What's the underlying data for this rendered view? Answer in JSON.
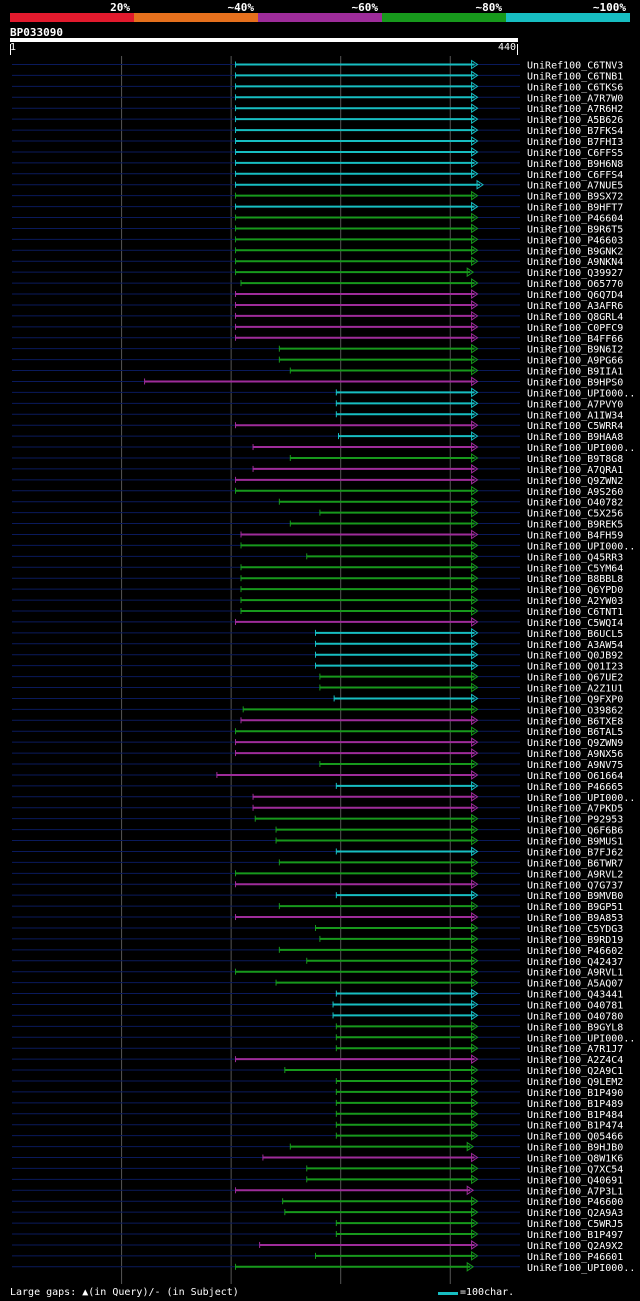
{
  "legend": [
    {
      "label": "20%",
      "color": "#e21a2d"
    },
    {
      "label": "~40%",
      "color": "#e5701d"
    },
    {
      "label": "~60%",
      "color": "#9e2c9a"
    },
    {
      "label": "~80%",
      "color": "#17991c"
    },
    {
      "label": "~100%",
      "color": "#17bec2"
    }
  ],
  "query": {
    "id": "BP033090",
    "start": "1",
    "end": "440",
    "length": 440
  },
  "footer": {
    "gaps_text": "Large gaps: ▲(in Query)/- (in Subject)",
    "scale_text": "=100char."
  },
  "colors": {
    "cyan": "#17bec2",
    "green": "#17991c",
    "magenta": "#9e2c9a",
    "track": "#0a1a5c",
    "grid": "#555555"
  },
  "chart_data": {
    "type": "alignment",
    "title": "BP033090",
    "x_range": [
      1,
      440
    ],
    "hits": [
      {
        "name": "UniRef100_C6TNV3",
        "start": 205,
        "end": 425,
        "color": "cyan"
      },
      {
        "name": "UniRef100_C6TNB1",
        "start": 205,
        "end": 425,
        "color": "cyan"
      },
      {
        "name": "UniRef100_C6TKS6",
        "start": 205,
        "end": 425,
        "color": "cyan"
      },
      {
        "name": "UniRef100_A7R7W0",
        "start": 205,
        "end": 425,
        "color": "cyan"
      },
      {
        "name": "UniRef100_A7R6H2",
        "start": 205,
        "end": 425,
        "color": "cyan"
      },
      {
        "name": "UniRef100_A5B626",
        "start": 205,
        "end": 425,
        "color": "cyan"
      },
      {
        "name": "UniRef100_B7FKS4",
        "start": 205,
        "end": 425,
        "color": "cyan"
      },
      {
        "name": "UniRef100_B7FHI3",
        "start": 205,
        "end": 425,
        "color": "cyan"
      },
      {
        "name": "UniRef100_C6FFS5",
        "start": 205,
        "end": 425,
        "color": "cyan"
      },
      {
        "name": "UniRef100_B9H6N8",
        "start": 205,
        "end": 425,
        "color": "cyan"
      },
      {
        "name": "UniRef100_C6FFS4",
        "start": 205,
        "end": 425,
        "color": "cyan"
      },
      {
        "name": "UniRef100_A7NUE5",
        "start": 205,
        "end": 430,
        "color": "cyan"
      },
      {
        "name": "UniRef100_B9SX72",
        "start": 205,
        "end": 425,
        "color": "green"
      },
      {
        "name": "UniRef100_B9HFT7",
        "start": 205,
        "end": 425,
        "color": "cyan"
      },
      {
        "name": "UniRef100_P46604",
        "start": 205,
        "end": 425,
        "color": "green"
      },
      {
        "name": "UniRef100_B9R6T5",
        "start": 205,
        "end": 425,
        "color": "green"
      },
      {
        "name": "UniRef100_P46603",
        "start": 205,
        "end": 425,
        "color": "green"
      },
      {
        "name": "UniRef100_B9GNK2",
        "start": 205,
        "end": 425,
        "color": "green"
      },
      {
        "name": "UniRef100_A9NKN4",
        "start": 205,
        "end": 425,
        "color": "green"
      },
      {
        "name": "UniRef100_Q39927",
        "start": 205,
        "end": 421,
        "color": "green"
      },
      {
        "name": "UniRef100_O65770",
        "start": 210,
        "end": 425,
        "color": "green"
      },
      {
        "name": "UniRef100_Q6Q7D4",
        "start": 205,
        "end": 425,
        "color": "magenta"
      },
      {
        "name": "UniRef100_A3AFR6",
        "start": 205,
        "end": 425,
        "color": "magenta"
      },
      {
        "name": "UniRef100_Q8GRL4",
        "start": 205,
        "end": 425,
        "color": "magenta"
      },
      {
        "name": "UniRef100_C0PFC9",
        "start": 205,
        "end": 425,
        "color": "magenta"
      },
      {
        "name": "UniRef100_B4FF66",
        "start": 205,
        "end": 425,
        "color": "magenta"
      },
      {
        "name": "UniRef100_B9N6I2",
        "start": 245,
        "end": 425,
        "color": "green"
      },
      {
        "name": "UniRef100_A9PG66",
        "start": 245,
        "end": 425,
        "color": "green"
      },
      {
        "name": "UniRef100_B9IIA1",
        "start": 255,
        "end": 425,
        "color": "green"
      },
      {
        "name": "UniRef100_B9HPS0",
        "start": 122,
        "end": 425,
        "color": "magenta"
      },
      {
        "name": "UniRef100_UPI000..",
        "start": 297,
        "end": 425,
        "color": "cyan"
      },
      {
        "name": "UniRef100_A7PVY0",
        "start": 297,
        "end": 425,
        "color": "cyan"
      },
      {
        "name": "UniRef100_A1IW34",
        "start": 297,
        "end": 425,
        "color": "cyan"
      },
      {
        "name": "UniRef100_C5WRR4",
        "start": 205,
        "end": 425,
        "color": "magenta"
      },
      {
        "name": "UniRef100_B9HAA8",
        "start": 299,
        "end": 425,
        "color": "cyan"
      },
      {
        "name": "UniRef100_UPI000..",
        "start": 221,
        "end": 425,
        "color": "magenta"
      },
      {
        "name": "UniRef100_B9T8G8",
        "start": 255,
        "end": 425,
        "color": "green"
      },
      {
        "name": "UniRef100_A7QRA1",
        "start": 221,
        "end": 425,
        "color": "magenta"
      },
      {
        "name": "UniRef100_Q9ZWN2",
        "start": 205,
        "end": 425,
        "color": "magenta"
      },
      {
        "name": "UniRef100_A9S260",
        "start": 205,
        "end": 425,
        "color": "green"
      },
      {
        "name": "UniRef100_O40782",
        "start": 245,
        "end": 425,
        "color": "green"
      },
      {
        "name": "UniRef100_C5X256",
        "start": 282,
        "end": 425,
        "color": "green"
      },
      {
        "name": "UniRef100_B9REK5",
        "start": 255,
        "end": 425,
        "color": "green"
      },
      {
        "name": "UniRef100_B4FH59",
        "start": 210,
        "end": 425,
        "color": "magenta"
      },
      {
        "name": "UniRef100_UPI000..",
        "start": 210,
        "end": 425,
        "color": "green"
      },
      {
        "name": "UniRef100_Q45RR3",
        "start": 270,
        "end": 425,
        "color": "green"
      },
      {
        "name": "UniRef100_C5YM64",
        "start": 210,
        "end": 425,
        "color": "green"
      },
      {
        "name": "UniRef100_B8BBL8",
        "start": 210,
        "end": 425,
        "color": "green"
      },
      {
        "name": "UniRef100_Q6YPD0",
        "start": 210,
        "end": 425,
        "color": "green"
      },
      {
        "name": "UniRef100_A2YW03",
        "start": 210,
        "end": 425,
        "color": "green"
      },
      {
        "name": "UniRef100_C6TNT1",
        "start": 210,
        "end": 425,
        "color": "green"
      },
      {
        "name": "UniRef100_C5WQI4",
        "start": 205,
        "end": 425,
        "color": "magenta"
      },
      {
        "name": "UniRef100_B6UCL5",
        "start": 278,
        "end": 425,
        "color": "cyan"
      },
      {
        "name": "UniRef100_A3AW54",
        "start": 278,
        "end": 425,
        "color": "cyan"
      },
      {
        "name": "UniRef100_Q0JB92",
        "start": 278,
        "end": 425,
        "color": "cyan"
      },
      {
        "name": "UniRef100_Q01I23",
        "start": 278,
        "end": 425,
        "color": "cyan"
      },
      {
        "name": "UniRef100_Q67UE2",
        "start": 282,
        "end": 425,
        "color": "green"
      },
      {
        "name": "UniRef100_A2Z1U1",
        "start": 282,
        "end": 425,
        "color": "green"
      },
      {
        "name": "UniRef100_Q9FXP0",
        "start": 295,
        "end": 425,
        "color": "cyan"
      },
      {
        "name": "UniRef100_O39862",
        "start": 212,
        "end": 425,
        "color": "green"
      },
      {
        "name": "UniRef100_B6TXE8",
        "start": 210,
        "end": 425,
        "color": "magenta"
      },
      {
        "name": "UniRef100_B6TAL5",
        "start": 205,
        "end": 425,
        "color": "green"
      },
      {
        "name": "UniRef100_Q9ZWN9",
        "start": 205,
        "end": 425,
        "color": "magenta"
      },
      {
        "name": "UniRef100_A9NX56",
        "start": 205,
        "end": 425,
        "color": "magenta"
      },
      {
        "name": "UniRef100_A9NV75",
        "start": 282,
        "end": 425,
        "color": "green"
      },
      {
        "name": "UniRef100_O61664",
        "start": 188,
        "end": 425,
        "color": "magenta"
      },
      {
        "name": "UniRef100_P46665",
        "start": 297,
        "end": 425,
        "color": "cyan"
      },
      {
        "name": "UniRef100_UPI000..",
        "start": 221,
        "end": 425,
        "color": "magenta"
      },
      {
        "name": "UniRef100_A7PKD5",
        "start": 221,
        "end": 425,
        "color": "magenta"
      },
      {
        "name": "UniRef100_P92953",
        "start": 223,
        "end": 425,
        "color": "green"
      },
      {
        "name": "UniRef100_Q6F6B6",
        "start": 242,
        "end": 425,
        "color": "green"
      },
      {
        "name": "UniRef100_B9MUS1",
        "start": 242,
        "end": 425,
        "color": "green"
      },
      {
        "name": "UniRef100_B7FJ62",
        "start": 297,
        "end": 425,
        "color": "cyan"
      },
      {
        "name": "UniRef100_B6TWR7",
        "start": 245,
        "end": 425,
        "color": "green"
      },
      {
        "name": "UniRef100_A9RVL2",
        "start": 205,
        "end": 425,
        "color": "green"
      },
      {
        "name": "UniRef100_Q7G737",
        "start": 205,
        "end": 425,
        "color": "magenta"
      },
      {
        "name": "UniRef100_B9MVB0",
        "start": 297,
        "end": 425,
        "color": "cyan"
      },
      {
        "name": "UniRef100_B9GP51",
        "start": 245,
        "end": 425,
        "color": "green"
      },
      {
        "name": "UniRef100_B9A853",
        "start": 205,
        "end": 425,
        "color": "magenta"
      },
      {
        "name": "UniRef100_C5YDG3",
        "start": 278,
        "end": 425,
        "color": "green"
      },
      {
        "name": "UniRef100_B9RD19",
        "start": 282,
        "end": 425,
        "color": "green"
      },
      {
        "name": "UniRef100_P46602",
        "start": 245,
        "end": 425,
        "color": "green"
      },
      {
        "name": "UniRef100_Q42437",
        "start": 270,
        "end": 425,
        "color": "green"
      },
      {
        "name": "UniRef100_A9RVL1",
        "start": 205,
        "end": 425,
        "color": "green"
      },
      {
        "name": "UniRef100_A5AQ07",
        "start": 242,
        "end": 425,
        "color": "green"
      },
      {
        "name": "UniRef100_Q43441",
        "start": 297,
        "end": 425,
        "color": "cyan"
      },
      {
        "name": "UniRef100_O40781",
        "start": 294,
        "end": 425,
        "color": "cyan"
      },
      {
        "name": "UniRef100_O40780",
        "start": 294,
        "end": 425,
        "color": "cyan"
      },
      {
        "name": "UniRef100_B9GYL8",
        "start": 297,
        "end": 425,
        "color": "green"
      },
      {
        "name": "UniRef100_UPI000..",
        "start": 297,
        "end": 425,
        "color": "green"
      },
      {
        "name": "UniRef100_A7R1J7",
        "start": 297,
        "end": 425,
        "color": "green"
      },
      {
        "name": "UniRef100_A2Z4C4",
        "start": 205,
        "end": 425,
        "color": "magenta"
      },
      {
        "name": "UniRef100_Q2A9C1",
        "start": 250,
        "end": 425,
        "color": "green"
      },
      {
        "name": "UniRef100_Q9LEM2",
        "start": 297,
        "end": 425,
        "color": "green"
      },
      {
        "name": "UniRef100_B1P490",
        "start": 297,
        "end": 425,
        "color": "green"
      },
      {
        "name": "UniRef100_B1P489",
        "start": 297,
        "end": 425,
        "color": "green"
      },
      {
        "name": "UniRef100_B1P484",
        "start": 297,
        "end": 425,
        "color": "green"
      },
      {
        "name": "UniRef100_B1P474",
        "start": 297,
        "end": 425,
        "color": "green"
      },
      {
        "name": "UniRef100_Q05466",
        "start": 297,
        "end": 425,
        "color": "green"
      },
      {
        "name": "UniRef100_B9HJB0",
        "start": 255,
        "end": 421,
        "color": "green"
      },
      {
        "name": "UniRef100_Q8W1K6",
        "start": 230,
        "end": 425,
        "color": "magenta"
      },
      {
        "name": "UniRef100_Q7XC54",
        "start": 270,
        "end": 425,
        "color": "green"
      },
      {
        "name": "UniRef100_Q40691",
        "start": 270,
        "end": 425,
        "color": "green"
      },
      {
        "name": "UniRef100_A7P3L1",
        "start": 205,
        "end": 421,
        "color": "magenta"
      },
      {
        "name": "UniRef100_P46600",
        "start": 248,
        "end": 425,
        "color": "green"
      },
      {
        "name": "UniRef100_Q2A9A3",
        "start": 250,
        "end": 425,
        "color": "green"
      },
      {
        "name": "UniRef100_C5WRJ5",
        "start": 297,
        "end": 425,
        "color": "green"
      },
      {
        "name": "UniRef100_B1P497",
        "start": 297,
        "end": 425,
        "color": "green"
      },
      {
        "name": "UniRef100_Q2A9X2",
        "start": 227,
        "end": 425,
        "color": "magenta"
      },
      {
        "name": "UniRef100_P46601",
        "start": 278,
        "end": 425,
        "color": "green"
      },
      {
        "name": "UniRef100_UPI000..",
        "start": 205,
        "end": 421,
        "color": "green"
      }
    ]
  }
}
